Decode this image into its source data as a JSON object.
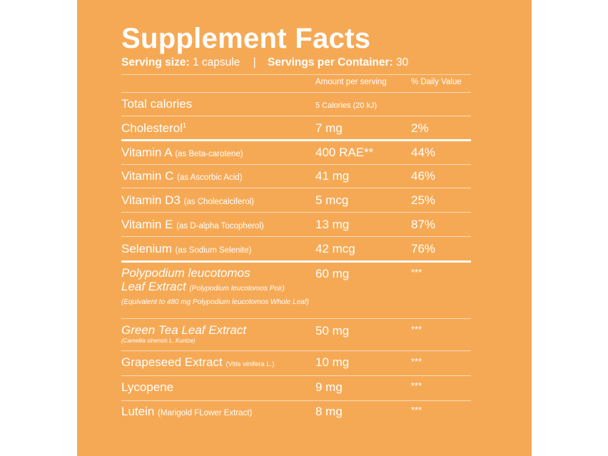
{
  "title": "Supplement Facts",
  "serving": {
    "size_label": "Serving size:",
    "size_value": "1 capsule",
    "separator": "|",
    "per_container_label": "Servings per Container:",
    "per_container_value": "30"
  },
  "columns": {
    "amount": "Amount per serving",
    "daily_value": "% Daily Value"
  },
  "rows": [
    {
      "name": "Total calories",
      "note": "",
      "amount": "5 Calories (20 kJ)",
      "dv": ""
    },
    {
      "name": "Cholesterol",
      "sup": "1",
      "note": "",
      "amount": "7 mg",
      "dv": "2%"
    },
    {
      "name": "Vitamin A",
      "note": "(as Beta-carotene)",
      "amount": "400 RAE**",
      "dv": "44%"
    },
    {
      "name": "Vitamin C",
      "note": "(as Ascorbic Acid)",
      "amount": "41 mg",
      "dv": "46%"
    },
    {
      "name": "Vitamin D3",
      "note": "(as Cholecalciferol)",
      "amount": "5 mcg",
      "dv": "25%"
    },
    {
      "name": "Vitamin E",
      "note": "(as D-alpha Tocopherol)",
      "amount": "13 mg",
      "dv": "87%"
    },
    {
      "name": "Selenium",
      "note": "(as Sodium Selenite)",
      "amount": "42 mcg",
      "dv": "76%"
    },
    {
      "name1": "Polypodium leucotomos",
      "name2": "Leaf Extract",
      "note": "(Polypodium leucotomos Poir) (Equivalent to 480 mg Polypodium leucotomos Whole Leaf)",
      "amount": "60 mg",
      "dv": "***"
    },
    {
      "name": "Green Tea Leaf Extract",
      "note": "(Camellia sinensis L. Kuntze)",
      "amount": "50 mg",
      "dv": "***"
    },
    {
      "name": "Grapeseed Extract",
      "note": "(Vitis vinifera L.)",
      "amount": "10 mg",
      "dv": "***"
    },
    {
      "name": "Lycopene",
      "note": "",
      "amount": "9 mg",
      "dv": "***"
    },
    {
      "name": "Lutein",
      "note": "(Marigold FLower Extract)",
      "amount": "8 mg",
      "dv": "***"
    }
  ],
  "colors": {
    "background": "#f6a955",
    "text": "#ffffff"
  }
}
